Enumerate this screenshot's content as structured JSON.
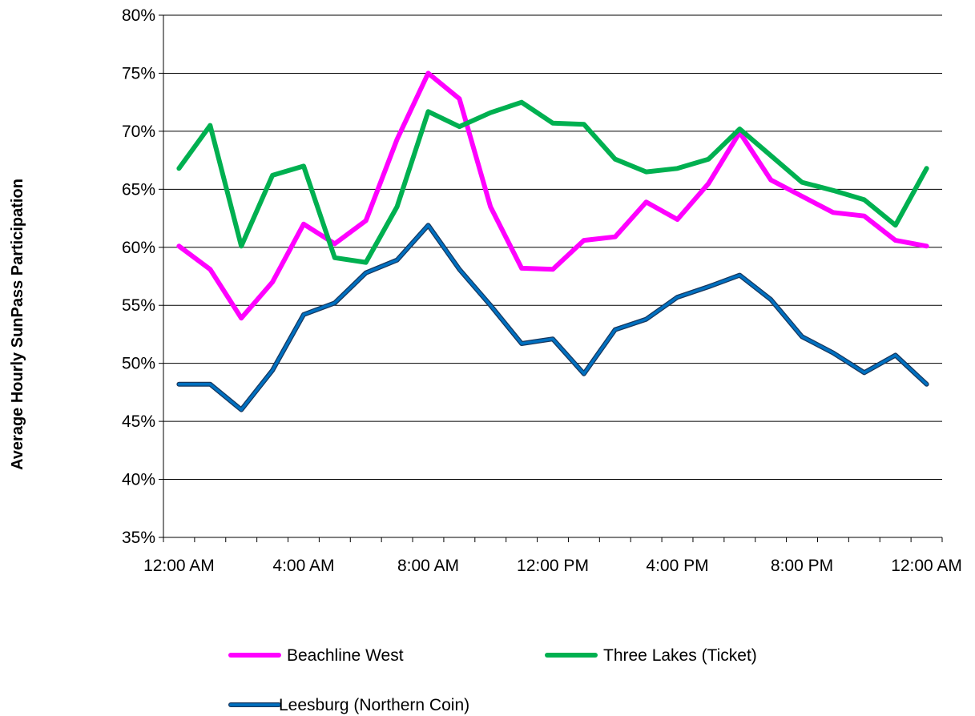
{
  "chart_data": {
    "type": "line",
    "title": "",
    "xlabel": "",
    "ylabel": "Average Hourly SunPass Participation",
    "ylim": [
      35,
      80
    ],
    "yticks": [
      "35%",
      "40%",
      "45%",
      "50%",
      "55%",
      "60%",
      "65%",
      "70%",
      "75%",
      "80%"
    ],
    "xtick_labels": [
      "12:00 AM",
      "4:00 AM",
      "8:00 AM",
      "12:00 PM",
      "4:00 PM",
      "8:00 PM",
      "12:00 AM"
    ],
    "x": [
      "12:00 AM",
      "1:00 AM",
      "2:00 AM",
      "3:00 AM",
      "4:00 AM",
      "5:00 AM",
      "6:00 AM",
      "7:00 AM",
      "8:00 AM",
      "9:00 AM",
      "10:00 AM",
      "11:00 AM",
      "12:00 PM",
      "1:00 PM",
      "2:00 PM",
      "3:00 PM",
      "4:00 PM",
      "5:00 PM",
      "6:00 PM",
      "7:00 PM",
      "8:00 PM",
      "9:00 PM",
      "10:00 PM",
      "11:00 PM",
      "12:00 AM"
    ],
    "grid": "horizontal",
    "legend_position": "bottom",
    "series": [
      {
        "name": "Beachline West",
        "color": "#ff00ff",
        "values": [
          60.1,
          58.1,
          53.9,
          57.0,
          62.0,
          60.3,
          62.3,
          69.3,
          75.0,
          72.8,
          63.5,
          58.2,
          58.1,
          60.6,
          60.9,
          63.9,
          62.4,
          65.5,
          69.9,
          65.8,
          64.4,
          63.0,
          62.7,
          60.6,
          60.1
        ]
      },
      {
        "name": "Three Lakes (Ticket)",
        "color": "#00b050",
        "values": [
          66.8,
          70.5,
          60.1,
          66.2,
          67.0,
          59.1,
          58.7,
          63.5,
          71.7,
          70.4,
          71.6,
          72.5,
          70.7,
          70.6,
          67.6,
          66.5,
          66.8,
          67.6,
          70.2,
          67.9,
          65.6,
          64.9,
          64.1,
          61.9,
          66.8
        ]
      },
      {
        "name": "Leesburg (Northern Coin)",
        "color": "#0070c0",
        "values": [
          48.2,
          48.2,
          46.0,
          49.4,
          54.2,
          55.2,
          57.8,
          58.9,
          61.9,
          58.1,
          55.0,
          51.7,
          52.1,
          49.1,
          52.9,
          53.8,
          55.7,
          56.6,
          57.6,
          55.5,
          52.3,
          50.9,
          49.2,
          50.7,
          48.2
        ]
      }
    ]
  }
}
